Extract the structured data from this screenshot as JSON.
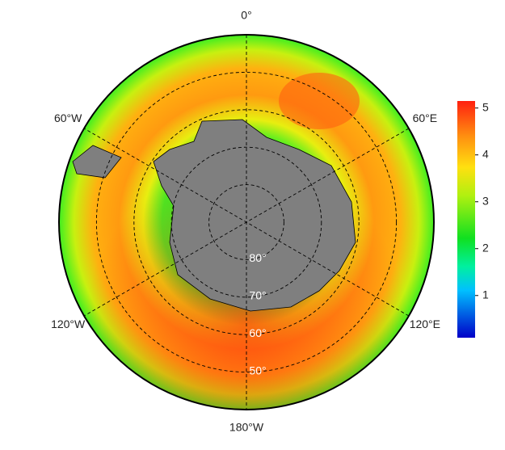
{
  "map": {
    "lon_labels": [
      {
        "value": 0,
        "label": "0°"
      },
      {
        "value": 60,
        "label": "60°E"
      },
      {
        "value": 120,
        "label": "120°E"
      },
      {
        "value": 180,
        "label": "180°W"
      },
      {
        "value": -120,
        "label": "120°W"
      },
      {
        "value": -60,
        "label": "60°W"
      }
    ],
    "lat_lim": [
      40,
      90
    ],
    "lat_labels": [
      {
        "value": 80,
        "label": "80°"
      },
      {
        "value": 70,
        "label": "70°"
      },
      {
        "value": 60,
        "label": "60°"
      },
      {
        "value": 50,
        "label": "50°"
      }
    ],
    "colorbar": {
      "range": [
        0.1,
        5.15
      ],
      "ticks": [
        1,
        2,
        3,
        4,
        5
      ]
    }
  }
}
